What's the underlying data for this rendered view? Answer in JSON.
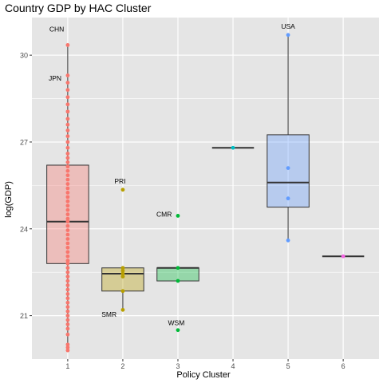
{
  "chart_data": {
    "type": "boxplot",
    "title": "Country GDP by HAC Cluster",
    "xlabel": "Policy Cluster",
    "ylabel": "log(GDP)",
    "categories": [
      "1",
      "2",
      "3",
      "4",
      "5",
      "6"
    ],
    "ylim": [
      19.5,
      31.3
    ],
    "y_ticks": [
      21,
      24,
      27,
      30
    ],
    "grid": true,
    "legend": "none",
    "background_color": "#E5E5E5",
    "grid_color": "#FFFFFF",
    "boxes": [
      {
        "cluster": "1",
        "q1": 22.8,
        "median": 24.25,
        "q3": 26.2,
        "whisker_low": 19.8,
        "whisker_high": 30.35,
        "fill": "#F8766D",
        "point_color": "#F8766D"
      },
      {
        "cluster": "2",
        "q1": 21.85,
        "median": 22.45,
        "q3": 22.65,
        "whisker_low": 21.2,
        "whisker_high": 22.65,
        "fill": "#B79F00",
        "point_color": "#B79F00"
      },
      {
        "cluster": "3",
        "q1": 22.2,
        "median": 22.65,
        "q3": 22.65,
        "whisker_low": 22.2,
        "whisker_high": 22.65,
        "fill": "#00BA38",
        "point_color": "#00BA38"
      },
      {
        "cluster": "4",
        "q1": 26.8,
        "median": 26.8,
        "q3": 26.8,
        "whisker_low": 26.8,
        "whisker_high": 26.8,
        "fill": "#00BFC4",
        "point_color": "#00BFC4"
      },
      {
        "cluster": "5",
        "q1": 24.75,
        "median": 25.6,
        "q3": 27.25,
        "whisker_low": 23.6,
        "whisker_high": 30.7,
        "fill": "#619CFF",
        "point_color": "#619CFF"
      },
      {
        "cluster": "6",
        "q1": 23.05,
        "median": 23.05,
        "q3": 23.05,
        "whisker_low": 23.05,
        "whisker_high": 23.05,
        "fill": "#F564E3",
        "point_color": "#F564E3"
      }
    ],
    "points": [
      {
        "cluster": "1",
        "y": [
          30.35,
          29.3,
          29.05,
          28.8,
          28.55,
          28.3,
          28.05,
          27.8,
          27.6,
          27.4,
          27.2,
          27.0,
          26.8,
          26.6,
          26.45,
          26.3,
          26.15,
          26.0,
          25.85,
          25.7,
          25.55,
          25.4,
          25.25,
          25.1,
          24.95,
          24.8,
          24.65,
          24.5,
          24.35,
          24.25,
          24.1,
          23.95,
          23.8,
          23.65,
          23.5,
          23.35,
          23.2,
          23.05,
          22.9,
          22.8,
          22.65,
          22.5,
          22.35,
          22.2,
          22.05,
          21.9,
          21.75,
          21.6,
          21.45,
          21.3,
          21.15,
          21.0,
          20.85,
          20.7,
          20.55,
          20.35,
          20.0,
          19.9,
          19.8
        ]
      },
      {
        "cluster": "2",
        "y": [
          25.35,
          22.65,
          22.55,
          22.45,
          22.35,
          21.85,
          21.2
        ]
      },
      {
        "cluster": "3",
        "y": [
          24.45,
          22.65,
          22.2,
          20.5
        ]
      },
      {
        "cluster": "4",
        "y": [
          26.8
        ]
      },
      {
        "cluster": "5",
        "y": [
          30.7,
          26.1,
          25.05,
          23.6
        ]
      },
      {
        "cluster": "6",
        "y": [
          23.05
        ]
      }
    ],
    "annotations": [
      {
        "label": "CHN",
        "cluster": "1",
        "y": 30.35,
        "dx": -0.2,
        "dy": 0.55
      },
      {
        "label": "JPN",
        "cluster": "1",
        "y": 29.3,
        "dx": -0.23,
        "dy": -0.1
      },
      {
        "label": "PRI",
        "cluster": "2",
        "y": 25.35,
        "dx": -0.05,
        "dy": 0.3
      },
      {
        "label": "SMR",
        "cluster": "2",
        "y": 21.2,
        "dx": -0.25,
        "dy": -0.15
      },
      {
        "label": "CMR",
        "cluster": "3",
        "y": 24.45,
        "dx": -0.25,
        "dy": 0.05
      },
      {
        "label": "WSM",
        "cluster": "3",
        "y": 20.5,
        "dx": -0.03,
        "dy": 0.25
      },
      {
        "label": "USA",
        "cluster": "5",
        "y": 30.7,
        "dx": 0.0,
        "dy": 0.3
      }
    ]
  }
}
